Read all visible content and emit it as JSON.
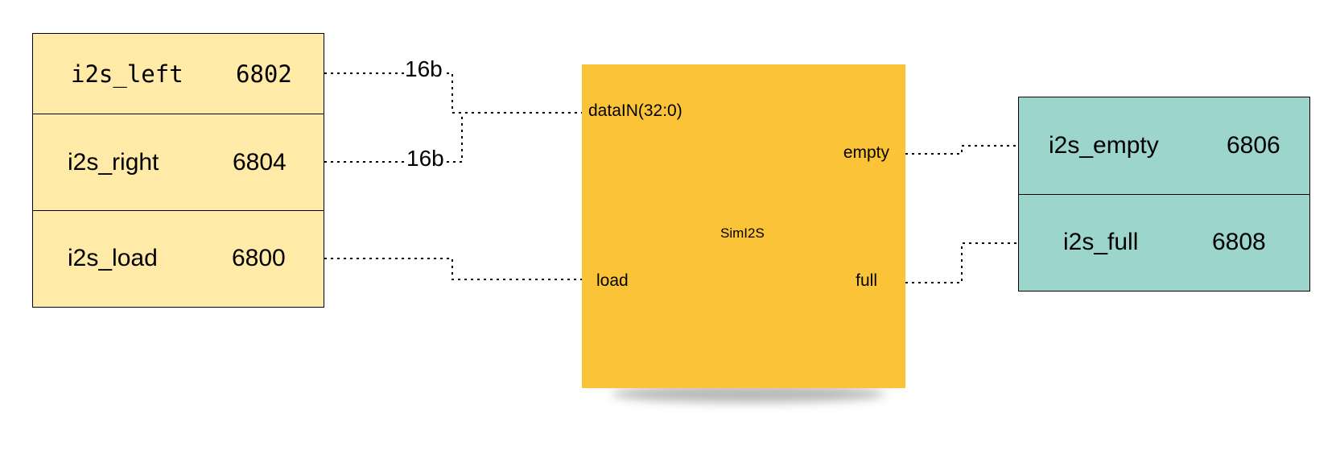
{
  "left_registers": [
    {
      "name": "i2s_left",
      "addr": "6802"
    },
    {
      "name": "i2s_right",
      "addr": "6804"
    },
    {
      "name": "i2s_load",
      "addr": "6800"
    }
  ],
  "right_registers": [
    {
      "name": "i2s_empty",
      "addr": "6806"
    },
    {
      "name": "i2s_full",
      "addr": "6808"
    }
  ],
  "block": {
    "title": "SimI2S",
    "ports": {
      "data_in": "dataIN(32:0)",
      "load": "load",
      "empty": "empty",
      "full": "full"
    }
  },
  "bus_labels": {
    "left_width": "16b",
    "right_width": "16b"
  },
  "colors": {
    "left_register_fill": "#ffeaa7",
    "right_register_fill": "#9cd5cc",
    "block_fill": "#fbc438"
  }
}
